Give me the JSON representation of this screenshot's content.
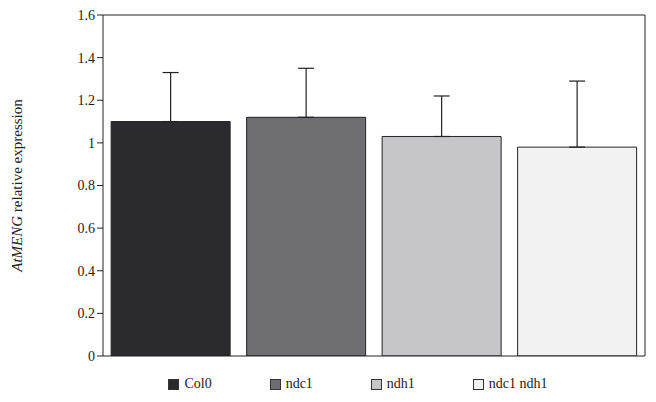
{
  "chart_data": {
    "type": "bar",
    "y_label": "AtMENG relative expression",
    "categories": [
      "Col0",
      "ndc1",
      "ndh1",
      "ndc1 ndh1"
    ],
    "values": [
      1.1,
      1.12,
      1.03,
      0.98
    ],
    "errors": [
      0.23,
      0.23,
      0.19,
      0.31
    ],
    "colors": [
      "#2b2b2f",
      "#6e6e72",
      "#c6c6c8",
      "#f2f2f2"
    ],
    "ylim": [
      0,
      1.6
    ],
    "yticks": [
      0,
      0.2,
      0.4,
      0.6,
      0.8,
      1,
      1.2,
      1.4,
      1.6
    ],
    "legend": "bottom",
    "tick_labels": "y"
  }
}
